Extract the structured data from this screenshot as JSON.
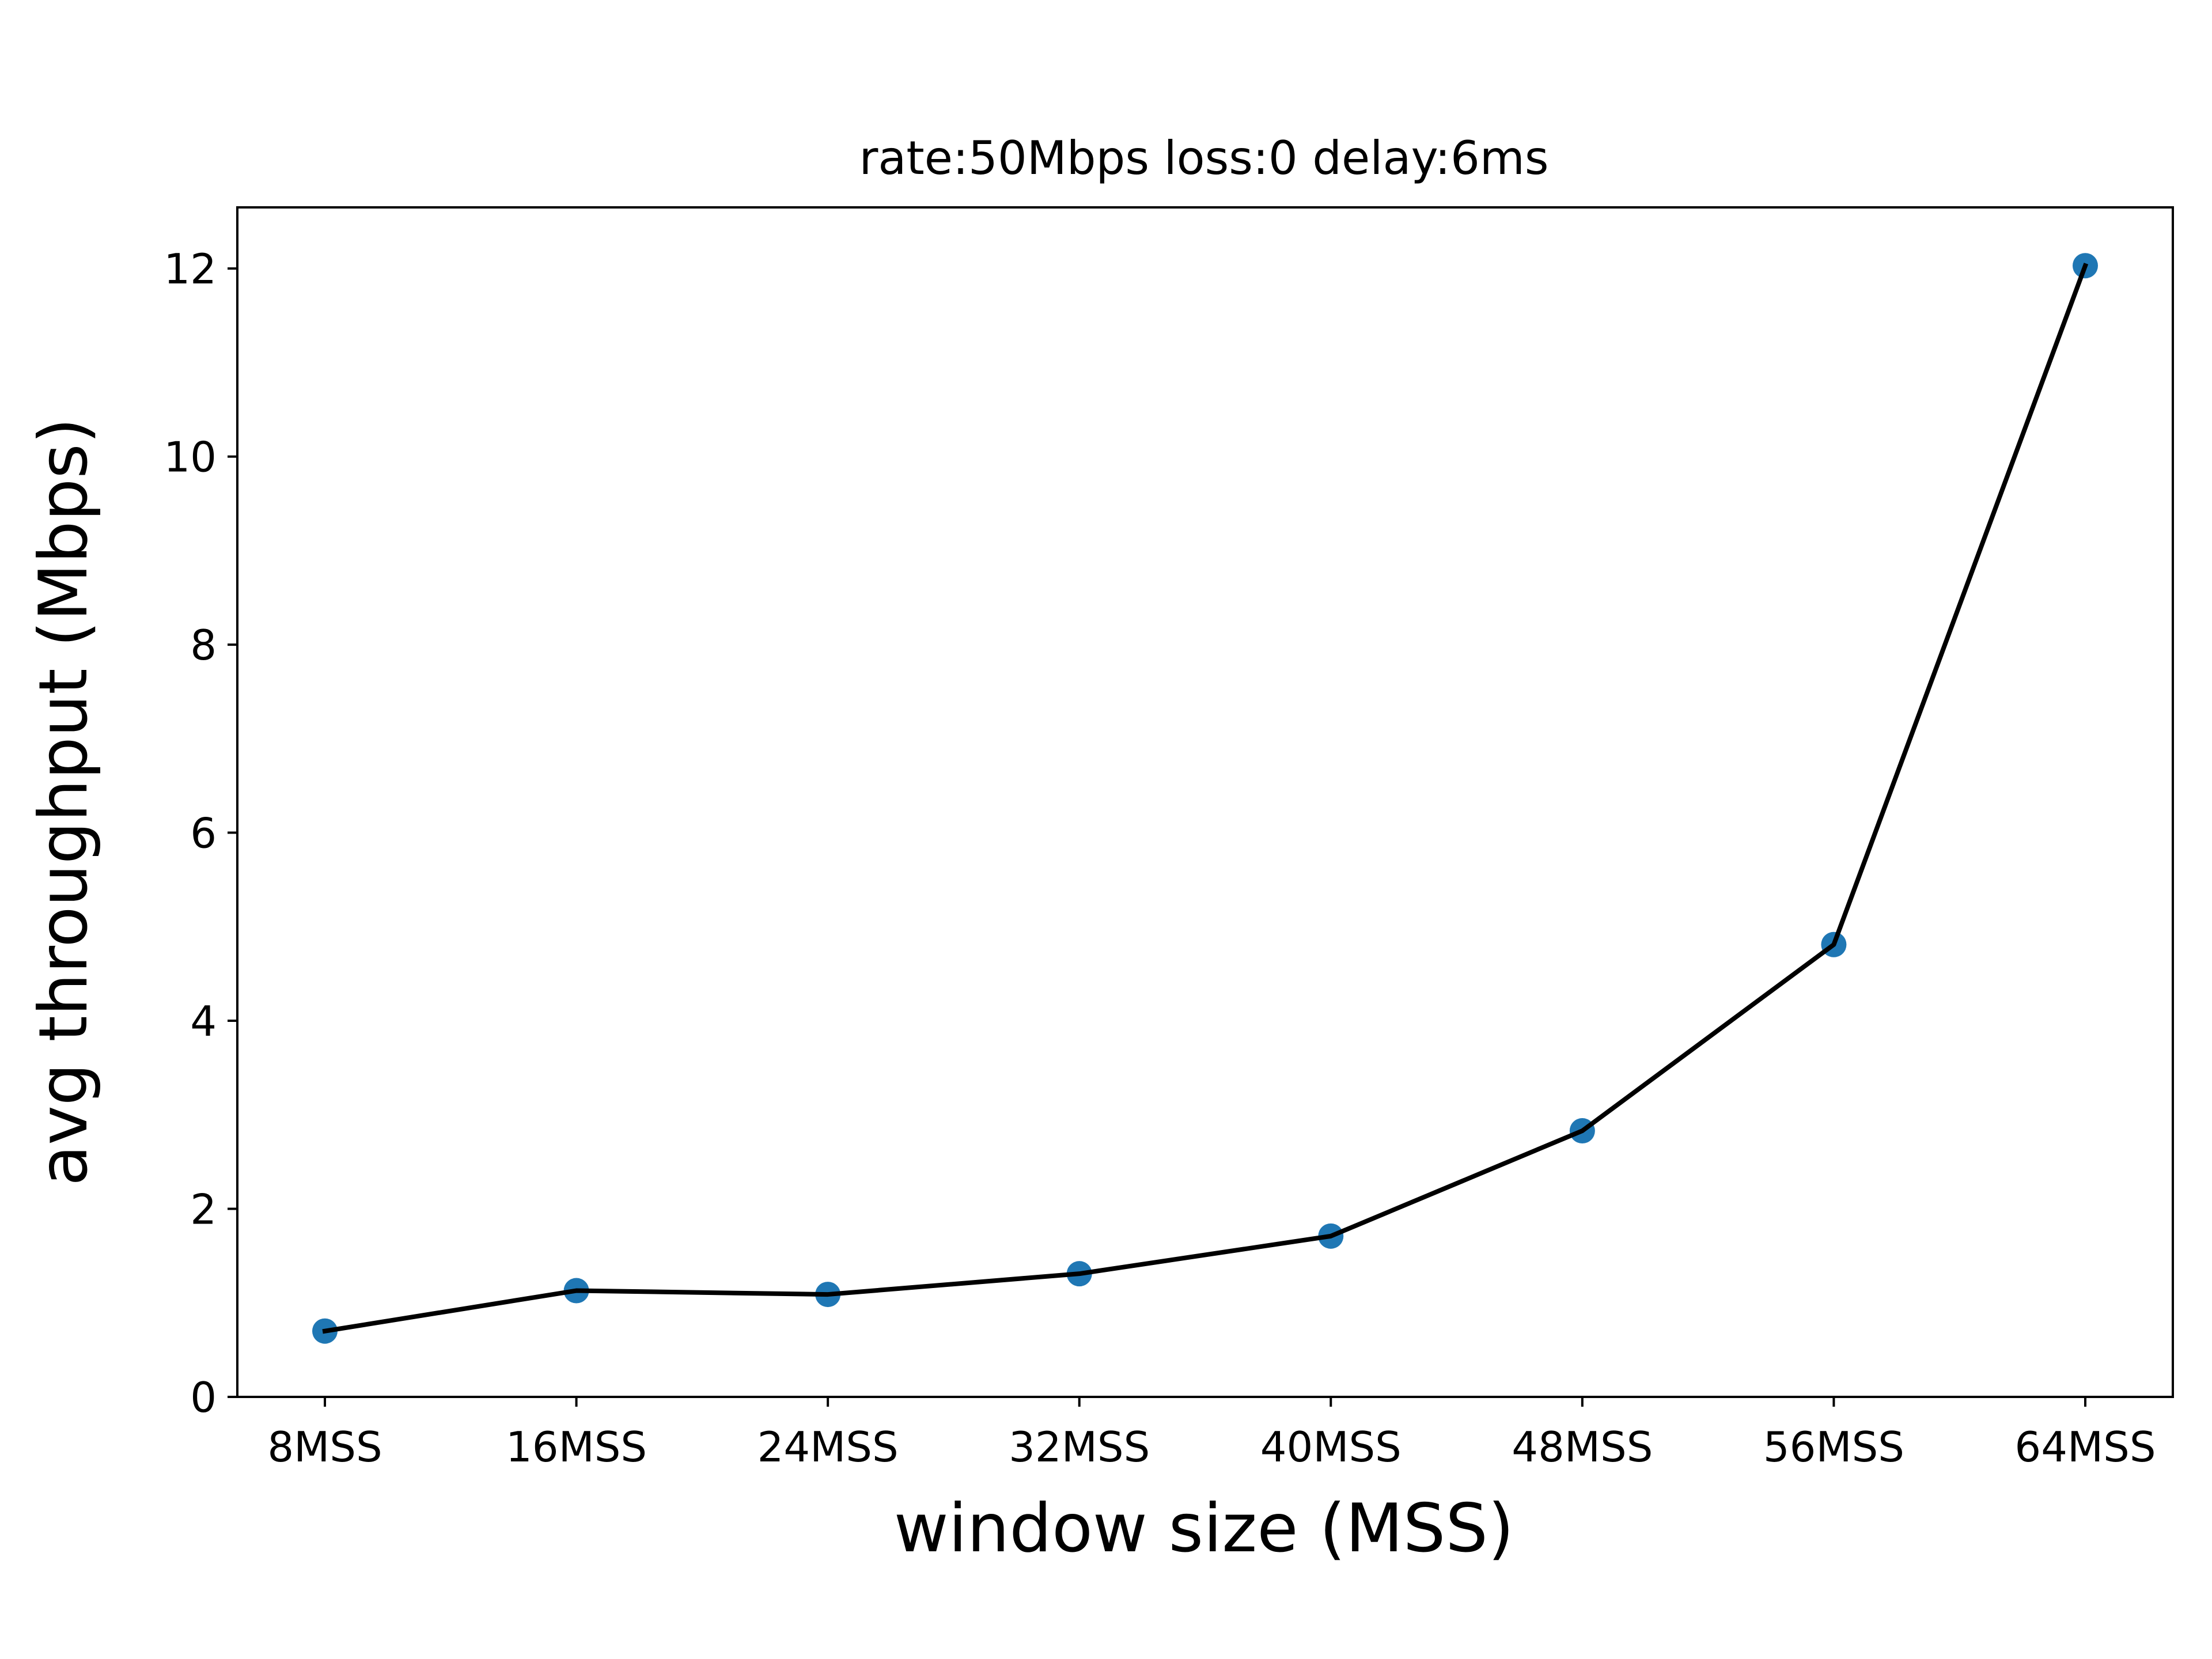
{
  "chart_data": {
    "type": "line",
    "title": "rate:50Mbps loss:0 delay:6ms",
    "xlabel": "window size (MSS)",
    "ylabel": "avg throughput (Mbps)",
    "categories": [
      "8MSS",
      "16MSS",
      "24MSS",
      "32MSS",
      "40MSS",
      "48MSS",
      "56MSS",
      "64MSS"
    ],
    "values": [
      0.7,
      1.13,
      1.09,
      1.31,
      1.71,
      2.83,
      4.81,
      12.03
    ],
    "yticks": [
      0,
      2,
      4,
      6,
      8,
      10,
      12
    ],
    "ylim": [
      0,
      12.65
    ],
    "grid": false,
    "colors": {
      "line": "#000000",
      "marker": "#1f77b4"
    }
  }
}
